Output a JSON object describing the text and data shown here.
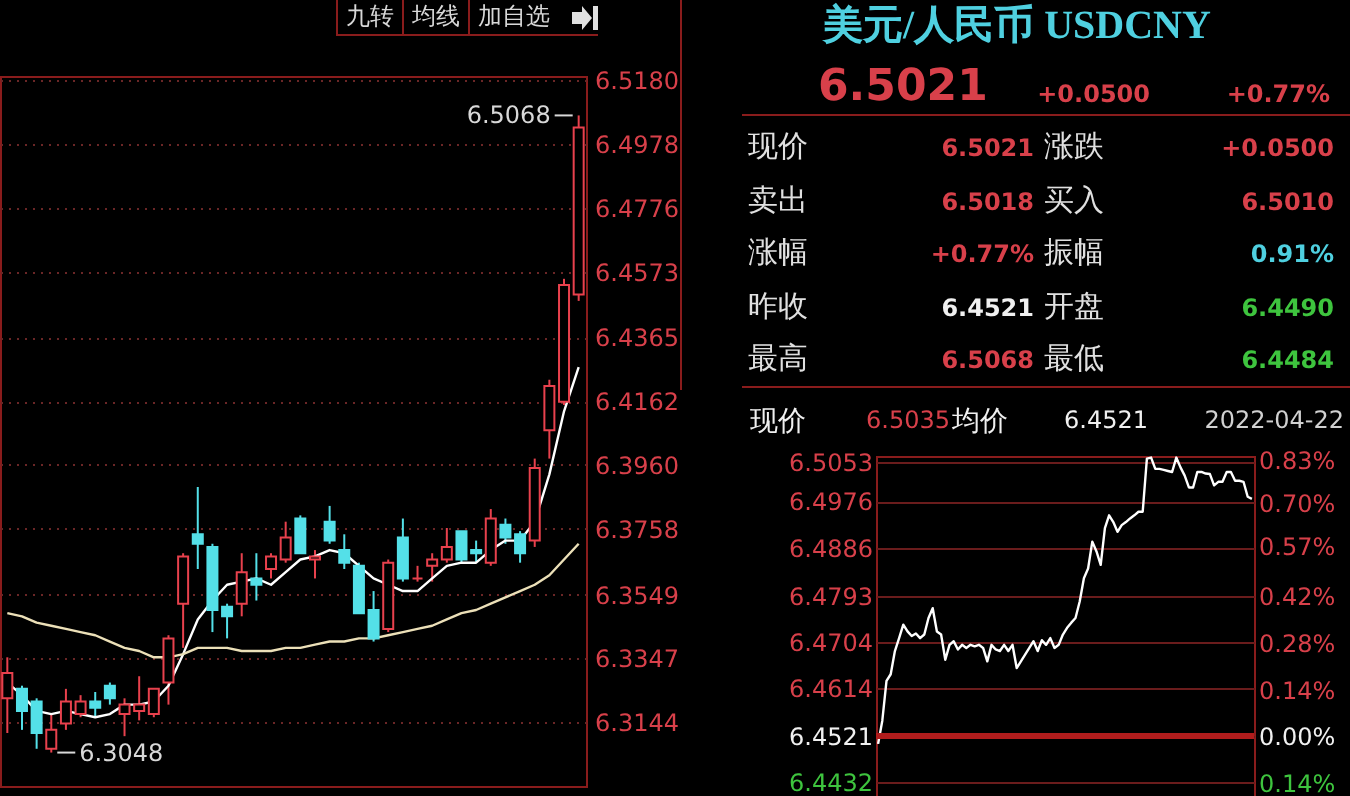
{
  "chart_data": [
    {
      "type": "candlestick",
      "categories": [
        null,
        null,
        null,
        null,
        null,
        null,
        null,
        null,
        null,
        null,
        null,
        null,
        null,
        null,
        null,
        null,
        null,
        null,
        null,
        null,
        null,
        null,
        null,
        null,
        null,
        null,
        null,
        null,
        null,
        null,
        null,
        null,
        null,
        null,
        null,
        null,
        null,
        null,
        null,
        null
      ],
      "ohlc": [
        [
          6.322,
          6.335,
          6.311,
          6.33
        ],
        [
          6.325,
          6.326,
          6.312,
          6.318
        ],
        [
          6.321,
          6.322,
          6.306,
          6.311
        ],
        [
          6.306,
          6.317,
          6.3048,
          6.312
        ],
        [
          6.314,
          6.325,
          6.312,
          6.321
        ],
        [
          6.317,
          6.323,
          6.316,
          6.321
        ],
        [
          6.321,
          6.324,
          6.316,
          6.319
        ],
        [
          6.326,
          6.327,
          6.32,
          6.322
        ],
        [
          6.317,
          6.322,
          6.31,
          6.32
        ],
        [
          6.318,
          6.329,
          6.315,
          6.32
        ],
        [
          6.317,
          6.325,
          6.316,
          6.325
        ],
        [
          6.327,
          6.342,
          6.32,
          6.341
        ],
        [
          6.352,
          6.368,
          6.338,
          6.367
        ],
        [
          6.374,
          6.389,
          6.363,
          6.371
        ],
        [
          6.37,
          6.371,
          6.343,
          6.35
        ],
        [
          6.351,
          6.352,
          6.341,
          6.348
        ],
        [
          6.352,
          6.368,
          6.348,
          6.362
        ],
        [
          6.36,
          6.368,
          6.353,
          6.358
        ],
        [
          6.363,
          6.368,
          6.36,
          6.367
        ],
        [
          6.366,
          6.378,
          6.365,
          6.373
        ],
        [
          6.379,
          6.38,
          6.368,
          6.368
        ],
        [
          6.366,
          6.369,
          6.36,
          6.367
        ],
        [
          6.378,
          6.383,
          6.371,
          6.372
        ],
        [
          6.369,
          6.374,
          6.363,
          6.365
        ],
        [
          6.364,
          6.365,
          6.349,
          6.349
        ],
        [
          6.35,
          6.356,
          6.34,
          6.341
        ],
        [
          6.344,
          6.366,
          6.343,
          6.365
        ],
        [
          6.373,
          6.379,
          6.359,
          6.36
        ],
        [
          6.36,
          6.364,
          6.359,
          6.36
        ],
        [
          6.364,
          6.368,
          6.359,
          6.366
        ],
        [
          6.366,
          6.376,
          6.365,
          6.37
        ],
        [
          6.375,
          6.375,
          6.365,
          6.366
        ],
        [
          6.369,
          6.372,
          6.365,
          6.368
        ],
        [
          6.365,
          6.382,
          6.364,
          6.379
        ],
        [
          6.377,
          6.379,
          6.371,
          6.373
        ],
        [
          6.374,
          6.375,
          6.365,
          6.368
        ],
        [
          6.372,
          6.398,
          6.37,
          6.395
        ],
        [
          6.407,
          6.423,
          6.398,
          6.421
        ],
        [
          6.416,
          6.455,
          6.415,
          6.453
        ],
        [
          6.45,
          6.5068,
          6.448,
          6.503
        ]
      ],
      "colors": [
        "#e8414d",
        "#54e0e8",
        "#54e0e8",
        "#e8414d",
        "#e8414d",
        "#e8414d",
        "#54e0e8",
        "#54e0e8",
        "#e8414d",
        "#e8414d",
        "#e8414d",
        "#e8414d",
        "#e8414d",
        "#54e0e8",
        "#54e0e8",
        "#54e0e8",
        "#e8414d",
        "#54e0e8",
        "#e8414d",
        "#e8414d",
        "#54e0e8",
        "#e8414d",
        "#54e0e8",
        "#54e0e8",
        "#54e0e8",
        "#54e0e8",
        "#e8414d",
        "#54e0e8",
        "#e8414d",
        "#e8414d",
        "#e8414d",
        "#54e0e8",
        "#54e0e8",
        "#e8414d",
        "#54e0e8",
        "#54e0e8",
        "#e8414d",
        "#e8414d",
        "#e8414d",
        "#e8414d"
      ],
      "series": [
        {
          "type": "line",
          "color": "#ffffff",
          "values": [
            6.327,
            6.323,
            6.318,
            6.317,
            6.318,
            6.317,
            6.316,
            6.317,
            6.32,
            6.32,
            6.321,
            6.326,
            6.336,
            6.347,
            6.353,
            6.358,
            6.359,
            6.36,
            6.358,
            6.362,
            6.366,
            6.367,
            6.369,
            6.368,
            6.364,
            6.36,
            6.358,
            6.356,
            6.356,
            6.36,
            6.364,
            6.365,
            6.365,
            6.369,
            6.372,
            6.372,
            6.378,
            6.393,
            6.413,
            6.427
          ]
        },
        {
          "type": "line",
          "color": "#ece0b8",
          "values": [
            6.349,
            6.348,
            6.346,
            6.345,
            6.344,
            6.343,
            6.342,
            6.34,
            6.338,
            6.337,
            6.335,
            6.335,
            6.336,
            6.338,
            6.338,
            6.338,
            6.337,
            6.337,
            6.337,
            6.338,
            6.338,
            6.339,
            6.34,
            6.34,
            6.341,
            6.341,
            6.342,
            6.343,
            6.344,
            6.345,
            6.347,
            6.349,
            6.35,
            6.352,
            6.354,
            6.356,
            6.358,
            6.361,
            6.366,
            6.371
          ]
        }
      ],
      "ylim": [
        6.2942,
        6.5193
      ],
      "yticks": [
        {
          "value": 6.518,
          "label": "6.5180"
        },
        6.4978,
        6.4776,
        6.4573,
        6.4365,
        6.4162,
        {
          "value": 6.396,
          "label": "6.3960"
        },
        6.3758,
        6.3549,
        6.3347,
        6.3144
      ],
      "grid": "y",
      "annotations": [
        "九转",
        "均线",
        "加自选",
        "6.5068",
        "6.3048"
      ]
    },
    {
      "type": "other",
      "title": "美元/人民币 USDCNY",
      "annotations": [
        "6.5021",
        "+0.0500",
        "+0.77%",
        "现价",
        "6.5021",
        "涨跌",
        "+0.0500",
        "卖出",
        "6.5018",
        "买入",
        "6.5010",
        "涨幅",
        "+0.77%",
        "振幅",
        "0.91%",
        "昨收",
        "6.4521",
        "开盘",
        "6.4490",
        "最高",
        "6.5068",
        "最低",
        "6.4484"
      ]
    },
    {
      "type": "line",
      "categories": [
        null,
        null,
        null,
        null,
        null,
        null,
        null,
        null,
        null,
        null,
        null,
        null,
        null,
        null,
        null,
        null,
        null,
        null,
        null,
        null,
        null,
        null,
        null,
        null,
        null,
        null,
        null,
        null,
        null,
        null,
        null,
        null,
        null,
        null,
        null,
        null,
        null,
        null,
        null,
        null,
        null,
        null,
        null,
        null,
        null,
        null,
        null,
        null,
        null,
        null,
        null,
        null,
        null,
        null,
        null,
        null,
        null,
        null,
        null,
        null,
        null,
        null,
        null,
        null,
        null,
        null,
        null,
        null,
        null,
        null,
        null,
        null,
        null,
        null,
        null,
        null,
        null,
        null,
        null,
        null,
        null,
        null,
        null,
        null,
        null,
        null,
        null,
        null,
        null,
        null
      ],
      "series": [
        {
          "color": "#ffffff",
          "values": [
            6.4506,
            6.4551,
            6.4628,
            6.4641,
            6.4686,
            6.4711,
            6.4737,
            6.4724,
            6.4715,
            6.472,
            6.4711,
            6.4718,
            6.475,
            6.4769,
            6.4724,
            6.4718,
            6.4669,
            6.4698,
            6.4705,
            6.4689,
            6.4698,
            6.4692,
            6.4698,
            6.4695,
            6.4698,
            6.4692,
            6.4666,
            6.4698,
            6.4689,
            6.4686,
            6.4698,
            6.4686,
            6.4698,
            6.4653,
            6.4666,
            6.4679,
            6.4692,
            6.4705,
            6.4686,
            6.4707,
            6.4698,
            6.4711,
            6.4692,
            6.4698,
            6.4718,
            6.4731,
            6.4741,
            6.475,
            6.4782,
            6.4827,
            6.4846,
            6.4898,
            6.4879,
            6.4853,
            6.4924,
            6.4949,
            6.4936,
            6.4917,
            6.493,
            6.4936,
            6.4943,
            6.4949,
            6.4956,
            6.4956,
            6.5059,
            6.5061,
            6.5039,
            6.5039,
            6.5037,
            6.5035,
            6.5033,
            6.5061,
            6.5042,
            6.5026,
            6.5003,
            6.5003,
            6.5033,
            6.5033,
            6.503,
            6.5029,
            6.5007,
            6.5014,
            6.5014,
            6.5033,
            6.5033,
            6.5016,
            6.5016,
            6.5014,
            6.4985,
            6.4981
          ]
        }
      ],
      "ylim": [
        6.4405,
        6.5064
      ],
      "yticks": [
        6.5053,
        6.4976,
        6.4886,
        6.4793,
        6.4704,
        6.4614,
        6.4521,
        6.4432
      ],
      "y2lim": [
        -0.18,
        0.842
      ],
      "y2ticks": [
        {
          "value": 0.83,
          "label": "0.83%"
        },
        {
          "value": 0.7,
          "label": "0.70%"
        },
        {
          "value": 0.57,
          "label": "0.57%"
        },
        {
          "value": 0.42,
          "label": "0.42%"
        },
        {
          "value": 0.28,
          "label": "0.28%"
        },
        {
          "value": 0.14,
          "label": "0.14%"
        },
        {
          "value": 0,
          "label": "0.00%"
        },
        {
          "value": -0.14,
          "label": "0.14%"
        }
      ],
      "ref_lines": [
        {
          "axis": "y2",
          "value": 0,
          "color": "#b01c1c"
        }
      ],
      "grid": "y",
      "annotations": [
        "现价",
        "6.5035",
        "均价",
        "6.4521",
        "2022-04-22"
      ]
    }
  ]
}
